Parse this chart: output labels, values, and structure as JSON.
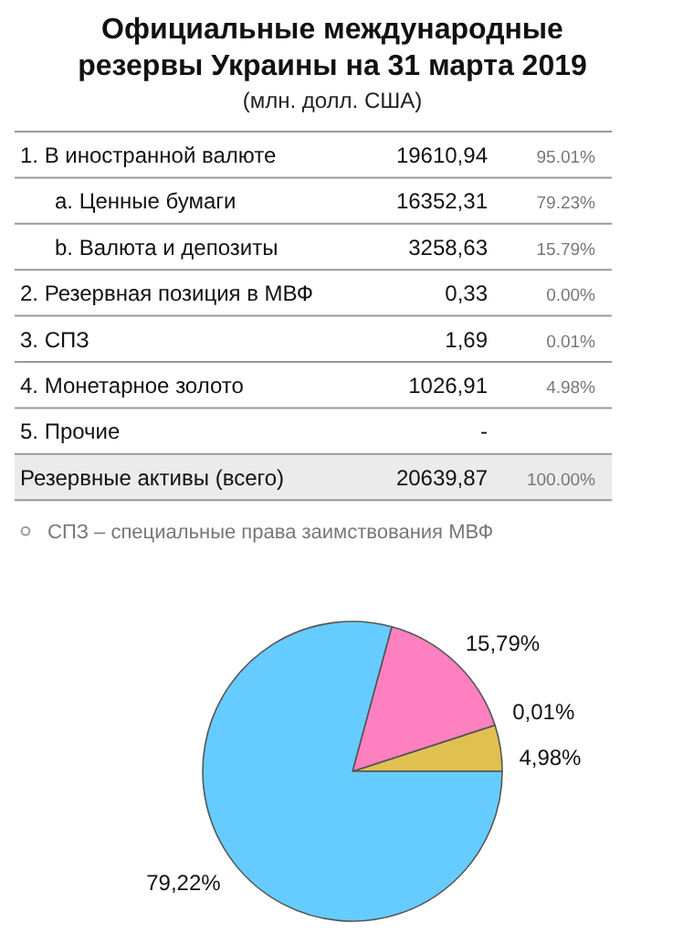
{
  "chart_data": [
    {
      "type": "other",
      "title": "Официальные международные резервы Украины на 31 марта 2019",
      "subtitle": "(млн. долл. США)",
      "annotations": [
        "1.  В иностранной валюте",
        "19610,94",
        "95.01%",
        "a.  Ценные бумаги",
        "16352,31",
        "79.23%",
        "b.  Валюта и депозиты",
        "3258,63",
        "15.79%",
        "2.  Резервная позиция в МВФ",
        "0,33",
        "0.00%",
        "3.  СПЗ",
        "1,69",
        "0.01%",
        "4.  Монетарное золото",
        "1026,91",
        "4.98%",
        "5.  Прочие",
        "-",
        null,
        "Резервные активы (всего)",
        "20639,87",
        "100.00%",
        "СПЗ – специальные права заимствования МВФ"
      ]
    },
    {
      "type": "pie",
      "categories": [
        null,
        null,
        null,
        null
      ],
      "values": [
        4.98,
        0.01,
        15.79,
        79.22
      ],
      "colors": [
        "#e0c050",
        "#cc99ff",
        "#ff80c0",
        "#66ccff"
      ],
      "value_labels": [
        "4,98%",
        "0,01%",
        "15,79%",
        "79,22%"
      ]
    }
  ]
}
